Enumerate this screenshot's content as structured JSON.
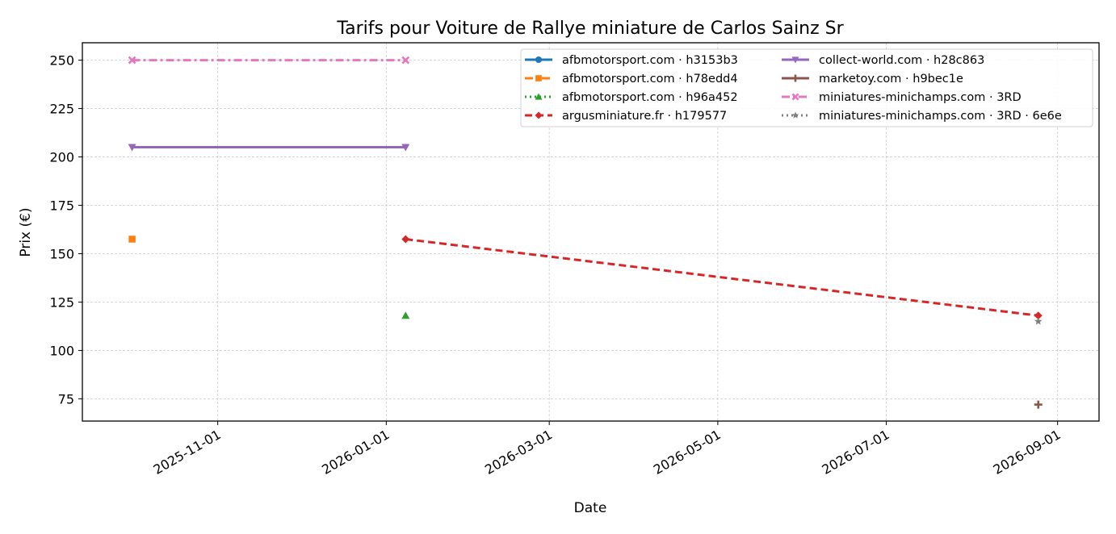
{
  "chart_data": {
    "type": "line",
    "title": "Tarifs pour Voiture de Rallye miniature de Carlos Sainz Sr",
    "xlabel": "Date",
    "ylabel": "Prix (€)",
    "x_type": "date",
    "xlim": [
      "2025-09-13",
      "2026-09-16"
    ],
    "ylim": [
      63.5,
      259
    ],
    "yticks": [
      75,
      100,
      125,
      150,
      175,
      200,
      225,
      250
    ],
    "xticks": [
      "2025-11-01",
      "2026-01-01",
      "2026-03-01",
      "2026-05-01",
      "2026-07-01",
      "2026-09-01"
    ],
    "grid": true,
    "legend_position": "top-right",
    "series": [
      {
        "name": "afbmotorsport.com · h3153b3",
        "color": "#1f77b4",
        "marker": "circle",
        "dash": "solid",
        "points": []
      },
      {
        "name": "afbmotorsport.com · h78edd4",
        "color": "#ff7f0e",
        "marker": "square",
        "dash": "dashdot",
        "points": [
          {
            "x": "2025-10-01",
            "y": 157.5
          }
        ]
      },
      {
        "name": "afbmotorsport.com · h96a452",
        "color": "#2ca02c",
        "marker": "triangle-up",
        "dash": "dotted",
        "points": [
          {
            "x": "2026-01-08",
            "y": 118
          }
        ]
      },
      {
        "name": "argusminiature.fr · h179577",
        "color": "#d62728",
        "marker": "diamond",
        "dash": "dashed",
        "points": [
          {
            "x": "2026-01-08",
            "y": 157.5
          },
          {
            "x": "2026-08-25",
            "y": 118
          }
        ]
      },
      {
        "name": "collect-world.com · h28c863",
        "color": "#9467bd",
        "marker": "triangle-down",
        "dash": "solid",
        "points": [
          {
            "x": "2025-10-01",
            "y": 205
          },
          {
            "x": "2026-01-08",
            "y": 205
          }
        ]
      },
      {
        "name": "marketoy.com · h9bec1e",
        "color": "#8c564b",
        "marker": "plus",
        "dash": "solid",
        "points": [
          {
            "x": "2026-08-25",
            "y": 72
          }
        ]
      },
      {
        "name": "miniatures-minichamps.com · 3RD",
        "color": "#e377c2",
        "marker": "x",
        "dash": "dashdot",
        "points": [
          {
            "x": "2025-10-01",
            "y": 250
          },
          {
            "x": "2026-01-08",
            "y": 250
          }
        ]
      },
      {
        "name": "miniatures-minichamps.com · 3RD · 6e6e",
        "color": "#7f7f7f",
        "marker": "star",
        "dash": "dotted",
        "points": [
          {
            "x": "2026-08-25",
            "y": 115
          }
        ]
      }
    ]
  }
}
